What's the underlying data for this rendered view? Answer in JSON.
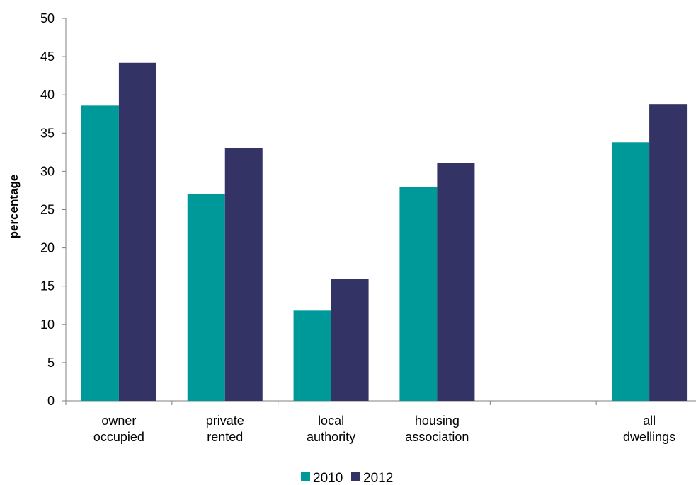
{
  "chart_data": {
    "type": "bar",
    "title": "",
    "xlabel": "",
    "ylabel": "percentage",
    "ylim": [
      0,
      50
    ],
    "yticks": [
      0,
      5,
      10,
      15,
      20,
      25,
      30,
      35,
      40,
      45,
      50
    ],
    "grid": false,
    "legend_position": "bottom",
    "categories": [
      [
        "owner",
        "occupied"
      ],
      [
        "private",
        "rented"
      ],
      [
        "local",
        "authority"
      ],
      [
        "housing",
        "association"
      ],
      [
        "",
        ""
      ],
      [
        "all",
        "dwellings"
      ]
    ],
    "series": [
      {
        "name": "2010",
        "color": "#009999",
        "values": [
          38.6,
          27.0,
          11.8,
          28.0,
          null,
          33.8
        ]
      },
      {
        "name": "2012",
        "color": "#333366",
        "values": [
          44.2,
          33.0,
          15.9,
          31.1,
          null,
          38.8
        ]
      }
    ]
  }
}
